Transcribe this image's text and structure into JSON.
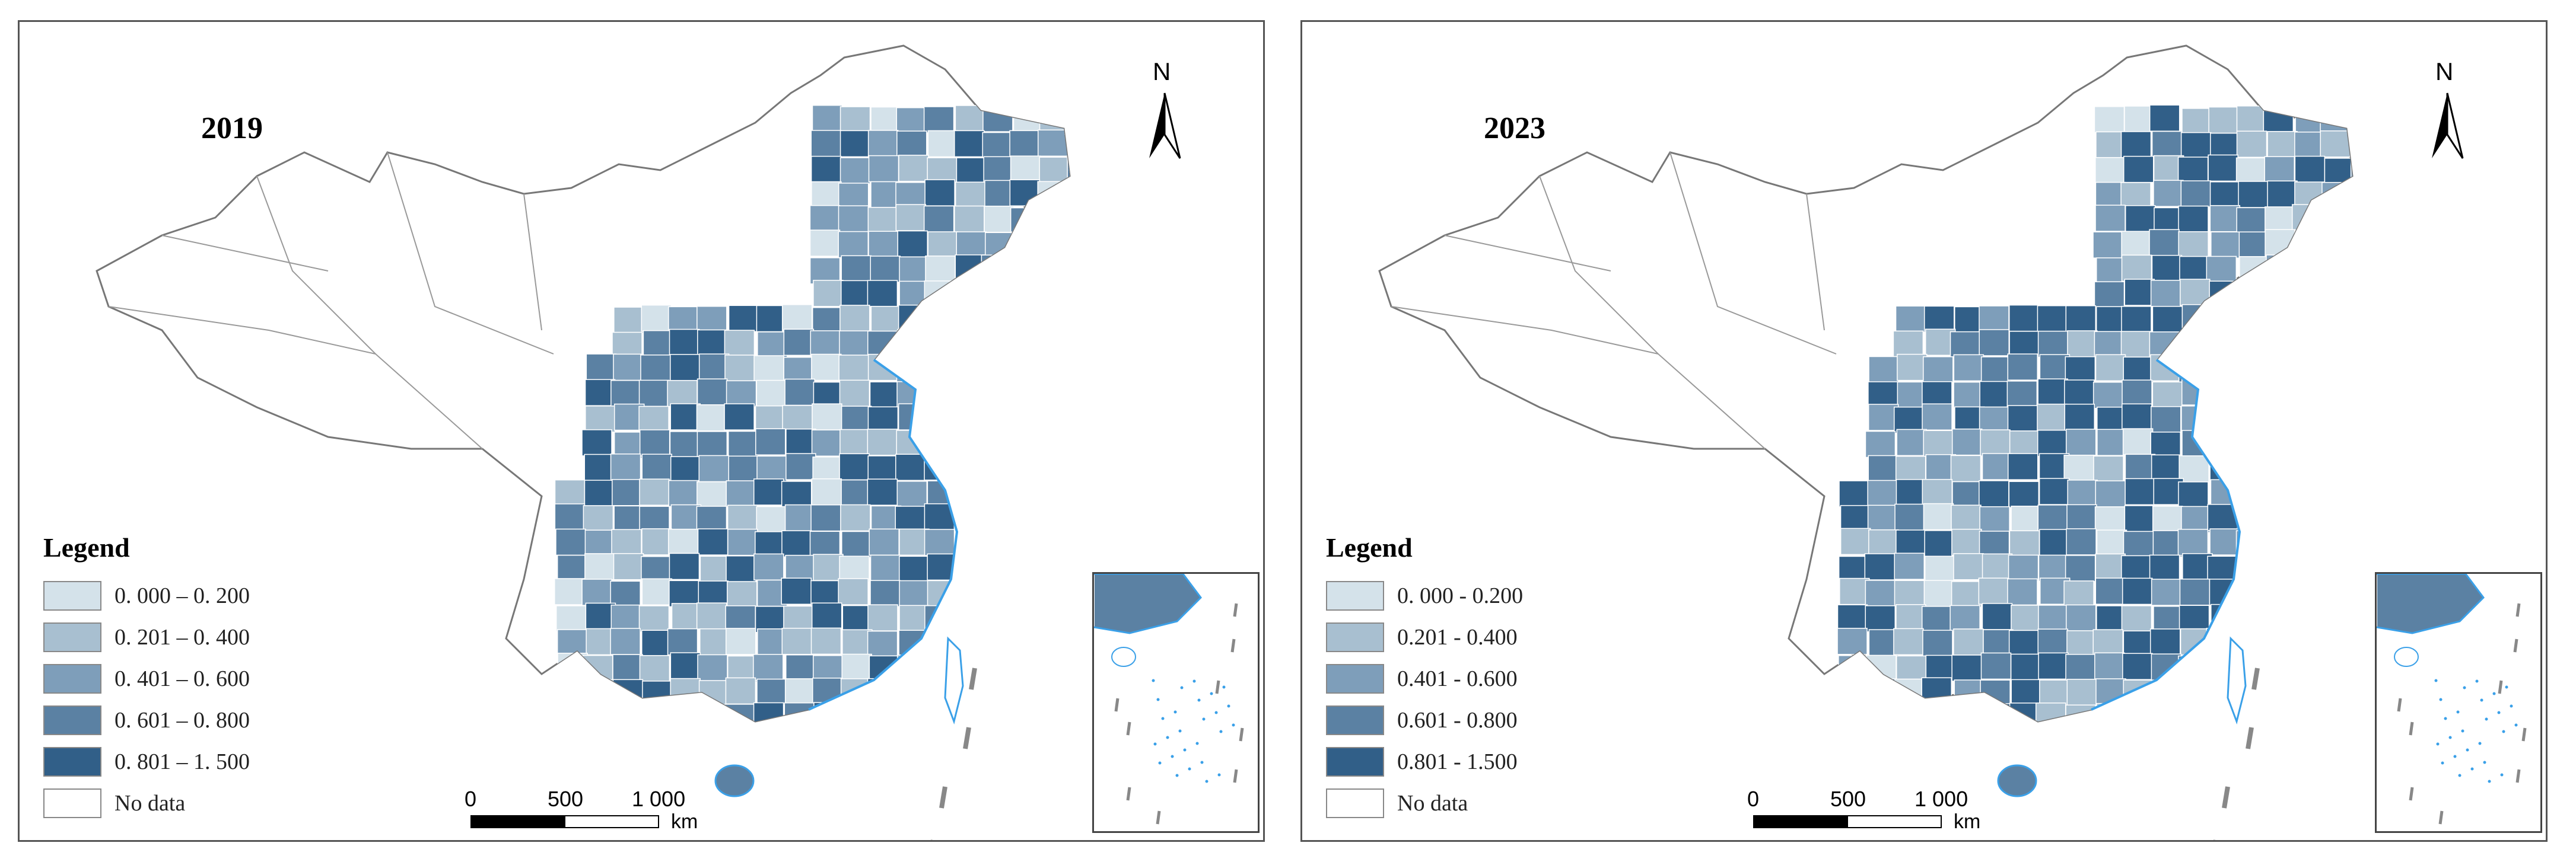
{
  "panels": [
    {
      "year": "2019",
      "legend": {
        "title": "Legend",
        "classes": [
          {
            "label": "0. 000 – 0. 200",
            "color": "#d4e2ea"
          },
          {
            "label": "0. 201 – 0. 400",
            "color": "#a8bfd0"
          },
          {
            "label": "0. 401 – 0. 600",
            "color": "#7e9eba"
          },
          {
            "label": "0. 601 – 0. 800",
            "color": "#5b81a3"
          },
          {
            "label": "0. 801 – 1. 500",
            "color": "#315f88"
          },
          {
            "label": "No data",
            "color": "#ffffff"
          }
        ]
      },
      "north_label": "N",
      "scale": {
        "ticks": [
          "0",
          "500",
          "1 000"
        ],
        "unit": "km"
      }
    },
    {
      "year": "2023",
      "legend": {
        "title": "Legend",
        "classes": [
          {
            "label": "0. 000 - 0.200",
            "color": "#d4e2ea"
          },
          {
            "label": "0.201 - 0.400",
            "color": "#a8bfd0"
          },
          {
            "label": "0.401 - 0.600",
            "color": "#7e9eba"
          },
          {
            "label": "0.601 - 0.800",
            "color": "#5b81a3"
          },
          {
            "label": "0.801 - 1.500",
            "color": "#315f88"
          },
          {
            "label": "No data",
            "color": "#ffffff"
          }
        ]
      },
      "north_label": "N",
      "scale": {
        "ticks": [
          "0",
          "500",
          "1 000"
        ],
        "unit": "km"
      }
    }
  ]
}
